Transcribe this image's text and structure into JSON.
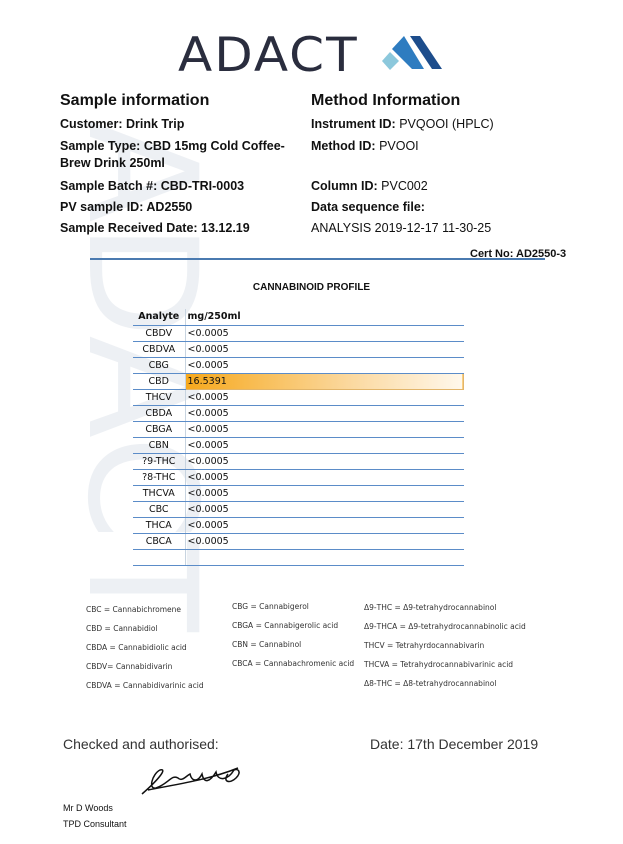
{
  "logo": {
    "text": "ADACT"
  },
  "sample": {
    "title": "Sample information",
    "fields": [
      {
        "label": "Customer:",
        "value": "Drink Trip"
      },
      {
        "label": "Sample Type:",
        "value": "CBD 15mg Cold Coffee-Brew Drink 250ml"
      },
      {
        "label": "Sample Batch #:",
        "value": "CBD-TRI-0003"
      },
      {
        "label": "PV sample ID:",
        "value": "AD2550"
      },
      {
        "label": "Sample Received Date:",
        "value": "13.12.19"
      }
    ]
  },
  "method": {
    "title": "Method Information",
    "fields": [
      {
        "label": "Instrument ID:",
        "value": "PVQOOI (HPLC)"
      },
      {
        "label": "Method ID:",
        "value": "PVOOI"
      },
      {
        "label": "Column ID:",
        "value": "PVC002"
      },
      {
        "label": "Data sequence file:",
        "value": "ANALYSIS 2019-12-17 11-30-25"
      }
    ]
  },
  "cert": "Cert No: AD2550-3",
  "profile_title": "CANNABINOID  PROFILE",
  "table": {
    "headers": [
      "Analyte",
      "mg/250ml"
    ],
    "rows": [
      [
        "CBDV",
        "<0.0005"
      ],
      [
        "CBDVA",
        "<0.0005"
      ],
      [
        "CBG",
        "<0.0005"
      ],
      [
        "CBD",
        "16.5391"
      ],
      [
        "THCV",
        "<0.0005"
      ],
      [
        "CBDA",
        "<0.0005"
      ],
      [
        "CBGA",
        "<0.0005"
      ],
      [
        "CBN",
        "<0.0005"
      ],
      [
        "?9-THC",
        "<0.0005"
      ],
      [
        "?8-THC",
        "<0.0005"
      ],
      [
        "THCVA",
        "<0.0005"
      ],
      [
        "CBC",
        "<0.0005"
      ],
      [
        "THCA",
        "<0.0005"
      ],
      [
        "CBCA",
        "<0.0005"
      ]
    ],
    "highlight_color": "#f6a81c"
  },
  "glossary": [
    [
      "CBC = Cannabichromene",
      "CBD = Cannabidiol",
      "CBDA = Cannabidiolic acid",
      "CBDV= Cannabidivarin",
      "CBDVA = Cannabidivarinic acid"
    ],
    [
      "CBG = Cannabigerol",
      "CBGA = Cannabigerolic acid",
      "CBN = Cannabinol",
      "CBCA = Cannabachromenic acid"
    ],
    [
      "Δ9-THC = Δ9-tetrahydrocannabinol",
      "Δ9-THCA  = Δ9-tetrahydrocannabinolic acid",
      "THCV = Tetrahyrdocannabivarin",
      "THCVA  = Tetrahydrocannabivarinic acid",
      "Δ8-THC = Δ8-tetrahydrocannabinol"
    ]
  ],
  "checked": "Checked and authorised:",
  "date": "Date: 17th December 2019",
  "signer": {
    "name": "Mr D Woods",
    "role": "TPD Consultant"
  }
}
